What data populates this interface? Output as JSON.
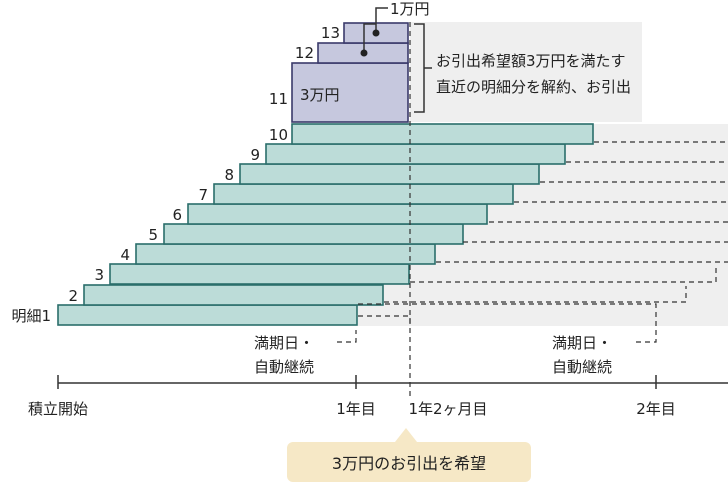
{
  "labels": {
    "note_1man": "1万円",
    "note_3man": "3万円",
    "brace_line1": "お引出希望額3万円を満たす",
    "brace_line2": "直近の明細分を解約、お引出",
    "maturity1_line1": "満期日・",
    "maturity1_line2": "自動継続",
    "maturity2_line1": "満期日・",
    "maturity2_line2": "自動継続",
    "axis_start": "積立開始",
    "axis_1y": "1年目",
    "axis_1y2m": "1年2ヶ月目",
    "axis_2y": "2年目",
    "callout": "3万円のお引出を希望"
  },
  "rows": [
    {
      "label": "明細1"
    },
    {
      "label": "2"
    },
    {
      "label": "3"
    },
    {
      "label": "4"
    },
    {
      "label": "5"
    },
    {
      "label": "6"
    },
    {
      "label": "7"
    },
    {
      "label": "8"
    },
    {
      "label": "9"
    },
    {
      "label": "10"
    },
    {
      "label": "11"
    },
    {
      "label": "12"
    },
    {
      "label": "13"
    }
  ],
  "colors": {
    "bar_fill": "#bcdcd8",
    "bar_stroke": "#2a6e6b",
    "withdraw_fill": "#c6c8de",
    "callout_bg": "#f6e8c6"
  }
}
